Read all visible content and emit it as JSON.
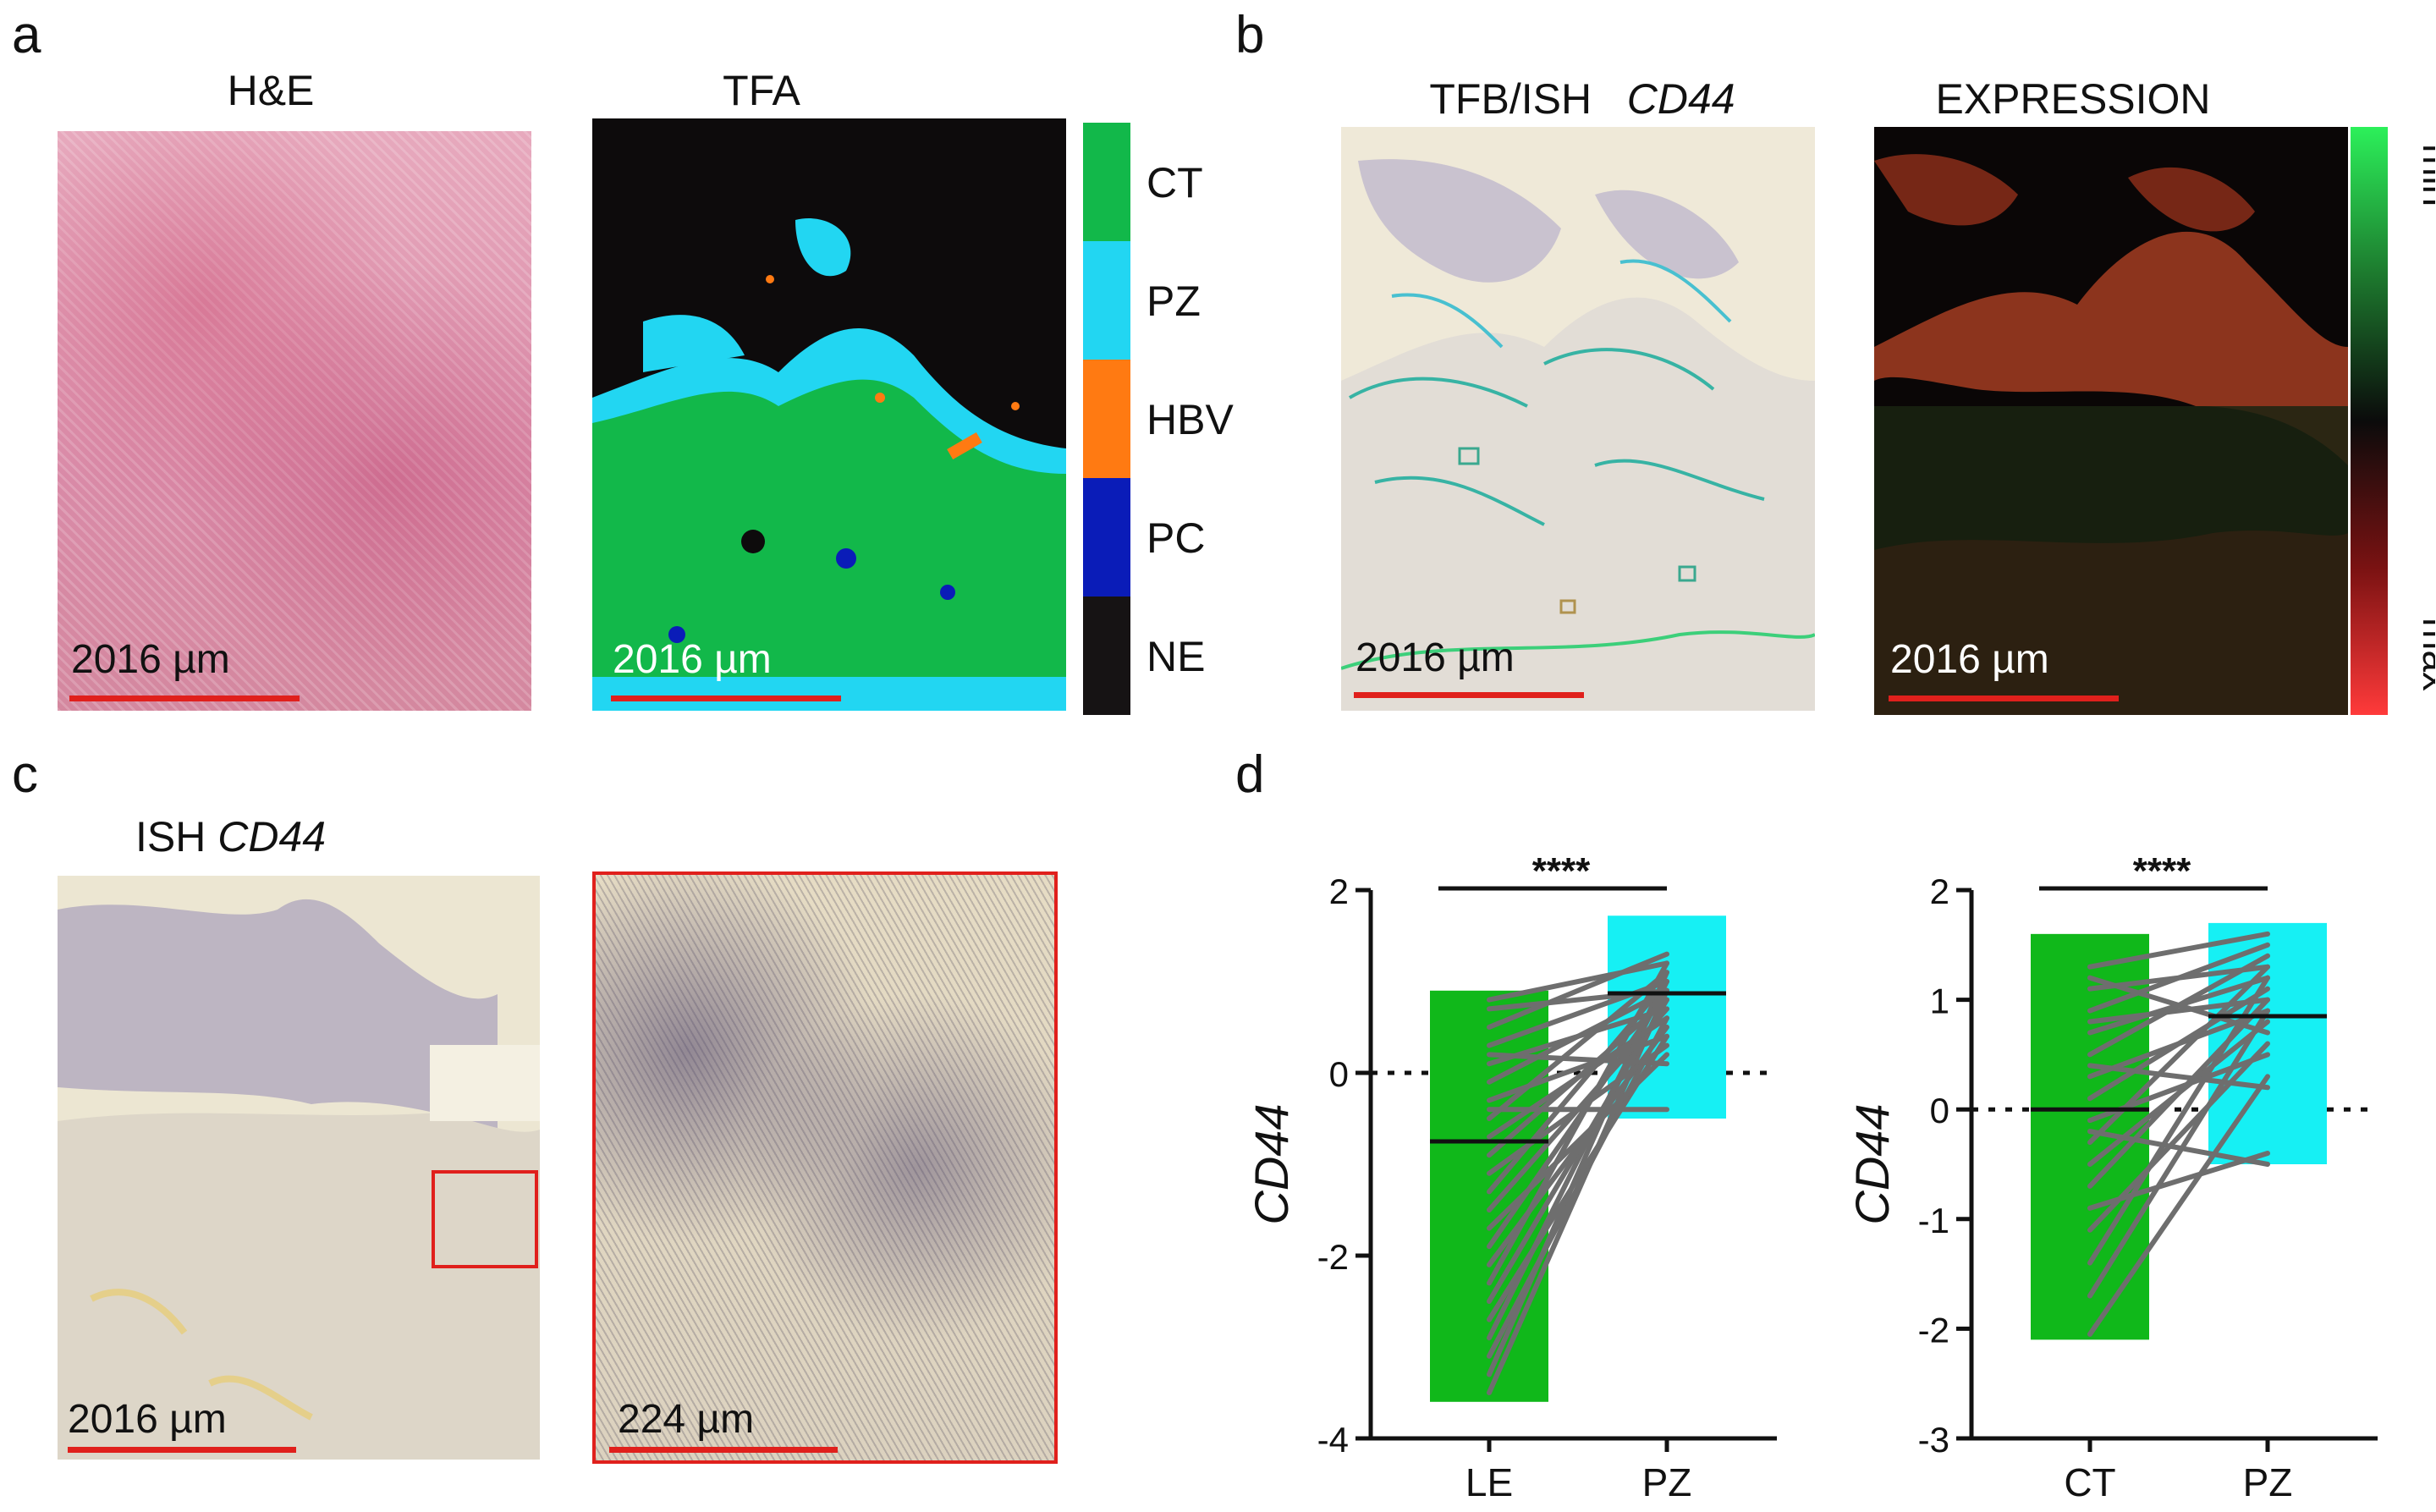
{
  "panels": {
    "a": {
      "letter": "a",
      "he_title": "H&E",
      "tfa_title": "TFA",
      "scale_he": "2016 µm",
      "scale_tfa": "2016 µm",
      "legend": [
        {
          "label": "CT",
          "color": "#12b84a"
        },
        {
          "label": "PZ",
          "color": "#22d6f2"
        },
        {
          "label": "HBV",
          "color": "#ff7a12"
        },
        {
          "label": "PC",
          "color": "#0a1cb8"
        },
        {
          "label": "NE",
          "color": "#161314"
        }
      ]
    },
    "b": {
      "letter": "b",
      "tfb_title_prefix": "TFB/ISH",
      "tfb_title_gene": "CD44",
      "expr_title": "EXPRESSION",
      "scale_tfb": "2016 µm",
      "scale_expr": "2016 µm",
      "colorbar_min": "min",
      "colorbar_max": "max"
    },
    "c": {
      "letter": "c",
      "title_prefix": "ISH",
      "title_gene": "CD44",
      "scale_main": "2016 µm",
      "scale_zoom": "224 µm"
    },
    "d": {
      "letter": "d"
    }
  },
  "chart_data": [
    {
      "type": "bar",
      "categories": [
        "LE",
        "PZ"
      ],
      "values": [
        -0.75,
        0.87
      ],
      "ranges": [
        [
          -3.6,
          0.9
        ],
        [
          -0.5,
          1.72
        ]
      ],
      "colors": [
        "#10b81a",
        "#16f0f4"
      ],
      "ylabel": "CD44",
      "ylim": [
        -4,
        2
      ],
      "yticks": [
        -4,
        -2,
        0,
        2
      ],
      "significance": "****",
      "paired_lines": [
        [
          -3.5,
          0.9
        ],
        [
          -3.3,
          1.1
        ],
        [
          -3.1,
          0.6
        ],
        [
          -2.9,
          1.0
        ],
        [
          -2.7,
          0.4
        ],
        [
          -2.5,
          0.8
        ],
        [
          -2.3,
          1.2
        ],
        [
          -2.1,
          0.5
        ],
        [
          -1.9,
          0.9
        ],
        [
          -1.7,
          0.2
        ],
        [
          -1.5,
          0.7
        ],
        [
          -1.3,
          1.0
        ],
        [
          -1.1,
          0.3
        ],
        [
          -0.9,
          0.8
        ],
        [
          -0.7,
          0.6
        ],
        [
          -0.5,
          1.1
        ],
        [
          -0.3,
          0.4
        ],
        [
          -0.1,
          0.9
        ],
        [
          0.1,
          0.7
        ],
        [
          0.3,
          1.0
        ],
        [
          0.5,
          1.3
        ],
        [
          0.7,
          0.9
        ],
        [
          0.8,
          1.2
        ],
        [
          -0.4,
          -0.4
        ],
        [
          0.2,
          0.1
        ]
      ]
    },
    {
      "type": "bar",
      "categories": [
        "CT",
        "PZ"
      ],
      "values": [
        0.0,
        0.85
      ],
      "ranges": [
        [
          -2.1,
          1.6
        ],
        [
          -0.5,
          1.7
        ]
      ],
      "colors": [
        "#10b81a",
        "#16f0f4"
      ],
      "ylabel": "CD44",
      "ylim": [
        -3,
        2
      ],
      "yticks": [
        -3,
        -2,
        -1,
        0,
        1,
        2
      ],
      "significance": "****",
      "paired_lines": [
        [
          -2.05,
          0.3
        ],
        [
          -1.7,
          0.9
        ],
        [
          -1.4,
          1.2
        ],
        [
          -1.1,
          0.6
        ],
        [
          -0.9,
          -0.4
        ],
        [
          -0.7,
          1.0
        ],
        [
          -0.5,
          0.8
        ],
        [
          -0.3,
          1.3
        ],
        [
          -0.1,
          0.5
        ],
        [
          0.1,
          1.1
        ],
        [
          0.3,
          0.9
        ],
        [
          0.5,
          1.4
        ],
        [
          0.7,
          1.2
        ],
        [
          0.9,
          1.5
        ],
        [
          1.1,
          1.3
        ],
        [
          1.3,
          1.6
        ],
        [
          -0.2,
          -0.5
        ],
        [
          0.4,
          0.2
        ],
        [
          0.8,
          1.0
        ],
        [
          1.2,
          0.7
        ]
      ]
    }
  ]
}
